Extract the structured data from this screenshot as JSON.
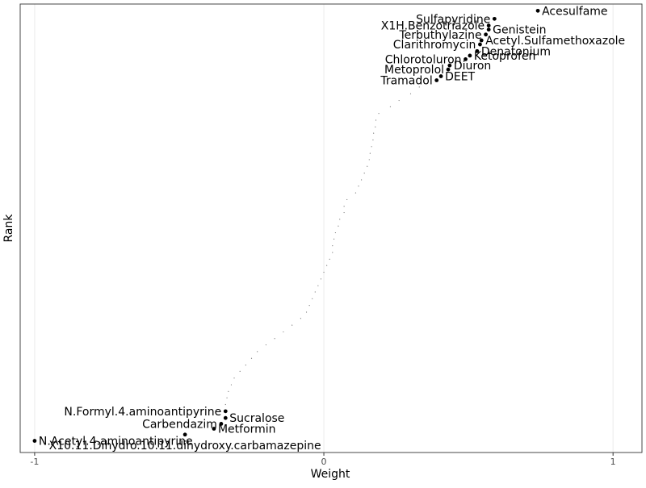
{
  "chart_data": {
    "type": "scatter",
    "title": "",
    "xlabel": "Weight",
    "ylabel": "Rank",
    "xlim": [
      -1.05,
      1.1
    ],
    "ylim": [
      0,
      100
    ],
    "x_ticks": [
      -1,
      0,
      1
    ],
    "x_tick_labels": [
      "-1",
      "0",
      "1"
    ],
    "grid": "vertical major gridlines",
    "background": "white",
    "labeled_points": [
      {
        "name": "Acesulfame",
        "x": 0.74,
        "y": 98.5,
        "label_side": "right"
      },
      {
        "name": "Sulfapyridine",
        "x": 0.59,
        "y": 96.7,
        "label_side": "left"
      },
      {
        "name": "X1H.Benzotriazole",
        "x": 0.57,
        "y": 95.2,
        "label_side": "left"
      },
      {
        "name": "Genistein",
        "x": 0.57,
        "y": 94.3,
        "label_side": "right"
      },
      {
        "name": "Terbuthylazine",
        "x": 0.56,
        "y": 93.2,
        "label_side": "left"
      },
      {
        "name": "Acetyl.Sulfamethoxazole",
        "x": 0.545,
        "y": 91.9,
        "label_side": "right"
      },
      {
        "name": "Clarithromycin",
        "x": 0.54,
        "y": 91.0,
        "label_side": "left"
      },
      {
        "name": "Denatonium",
        "x": 0.53,
        "y": 89.5,
        "label_side": "right"
      },
      {
        "name": "Ketoprofen",
        "x": 0.505,
        "y": 88.5,
        "label_side": "right"
      },
      {
        "name": "Chlorotoluron",
        "x": 0.49,
        "y": 87.7,
        "label_side": "left"
      },
      {
        "name": "Diuron",
        "x": 0.435,
        "y": 86.3,
        "label_side": "right"
      },
      {
        "name": "Metoprolol",
        "x": 0.43,
        "y": 85.4,
        "label_side": "left"
      },
      {
        "name": "DEET",
        "x": 0.405,
        "y": 83.9,
        "label_side": "right"
      },
      {
        "name": "Tramadol",
        "x": 0.39,
        "y": 83.0,
        "label_side": "left"
      },
      {
        "name": "N.Formyl.4.aminoantipyrine",
        "x": -0.34,
        "y": 9.2,
        "label_side": "left"
      },
      {
        "name": "Sucralose",
        "x": -0.34,
        "y": 7.7,
        "label_side": "right"
      },
      {
        "name": "Carbendazim",
        "x": -0.355,
        "y": 6.4,
        "label_side": "left"
      },
      {
        "name": "Metformin",
        "x": -0.38,
        "y": 5.3,
        "label_side": "right"
      },
      {
        "name": "X10.11.Dihydro.10.11.dihydroxy.carbamazepine",
        "x": -0.48,
        "y": 4.0,
        "label_side": "below"
      },
      {
        "name": "N.Acetyl.4.aminoantipyrine",
        "x": -1.0,
        "y": 2.6,
        "label_side": "right"
      }
    ],
    "minor_points": [
      {
        "x": 0.33,
        "y": 81.5
      },
      {
        "x": 0.3,
        "y": 80.0
      },
      {
        "x": 0.26,
        "y": 78.5
      },
      {
        "x": 0.23,
        "y": 77.1
      },
      {
        "x": 0.19,
        "y": 75.6
      },
      {
        "x": 0.18,
        "y": 74.1
      },
      {
        "x": 0.178,
        "y": 72.6
      },
      {
        "x": 0.172,
        "y": 71.2
      },
      {
        "x": 0.17,
        "y": 69.7
      },
      {
        "x": 0.165,
        "y": 68.2
      },
      {
        "x": 0.16,
        "y": 66.7
      },
      {
        "x": 0.157,
        "y": 65.3
      },
      {
        "x": 0.15,
        "y": 63.8
      },
      {
        "x": 0.14,
        "y": 62.3
      },
      {
        "x": 0.13,
        "y": 60.8
      },
      {
        "x": 0.12,
        "y": 59.4
      },
      {
        "x": 0.11,
        "y": 57.9
      },
      {
        "x": 0.08,
        "y": 56.4
      },
      {
        "x": 0.07,
        "y": 54.9
      },
      {
        "x": 0.07,
        "y": 53.5
      },
      {
        "x": 0.055,
        "y": 52.0
      },
      {
        "x": 0.05,
        "y": 50.5
      },
      {
        "x": 0.04,
        "y": 49.0
      },
      {
        "x": 0.035,
        "y": 47.6
      },
      {
        "x": 0.03,
        "y": 46.1
      },
      {
        "x": 0.03,
        "y": 44.6
      },
      {
        "x": 0.02,
        "y": 43.1
      },
      {
        "x": 0.01,
        "y": 41.7
      },
      {
        "x": 0.0,
        "y": 40.2
      },
      {
        "x": -0.01,
        "y": 38.7
      },
      {
        "x": -0.02,
        "y": 37.2
      },
      {
        "x": -0.03,
        "y": 35.8
      },
      {
        "x": -0.04,
        "y": 34.3
      },
      {
        "x": -0.05,
        "y": 32.8
      },
      {
        "x": -0.06,
        "y": 31.3
      },
      {
        "x": -0.08,
        "y": 29.9
      },
      {
        "x": -0.11,
        "y": 28.4
      },
      {
        "x": -0.14,
        "y": 26.9
      },
      {
        "x": -0.17,
        "y": 25.4
      },
      {
        "x": -0.2,
        "y": 24.0
      },
      {
        "x": -0.23,
        "y": 22.5
      },
      {
        "x": -0.25,
        "y": 21.0
      },
      {
        "x": -0.27,
        "y": 19.5
      },
      {
        "x": -0.29,
        "y": 18.1
      },
      {
        "x": -0.31,
        "y": 16.6
      },
      {
        "x": -0.32,
        "y": 15.1
      },
      {
        "x": -0.33,
        "y": 13.6
      },
      {
        "x": -0.335,
        "y": 12.2
      },
      {
        "x": -0.34,
        "y": 10.7
      }
    ]
  }
}
